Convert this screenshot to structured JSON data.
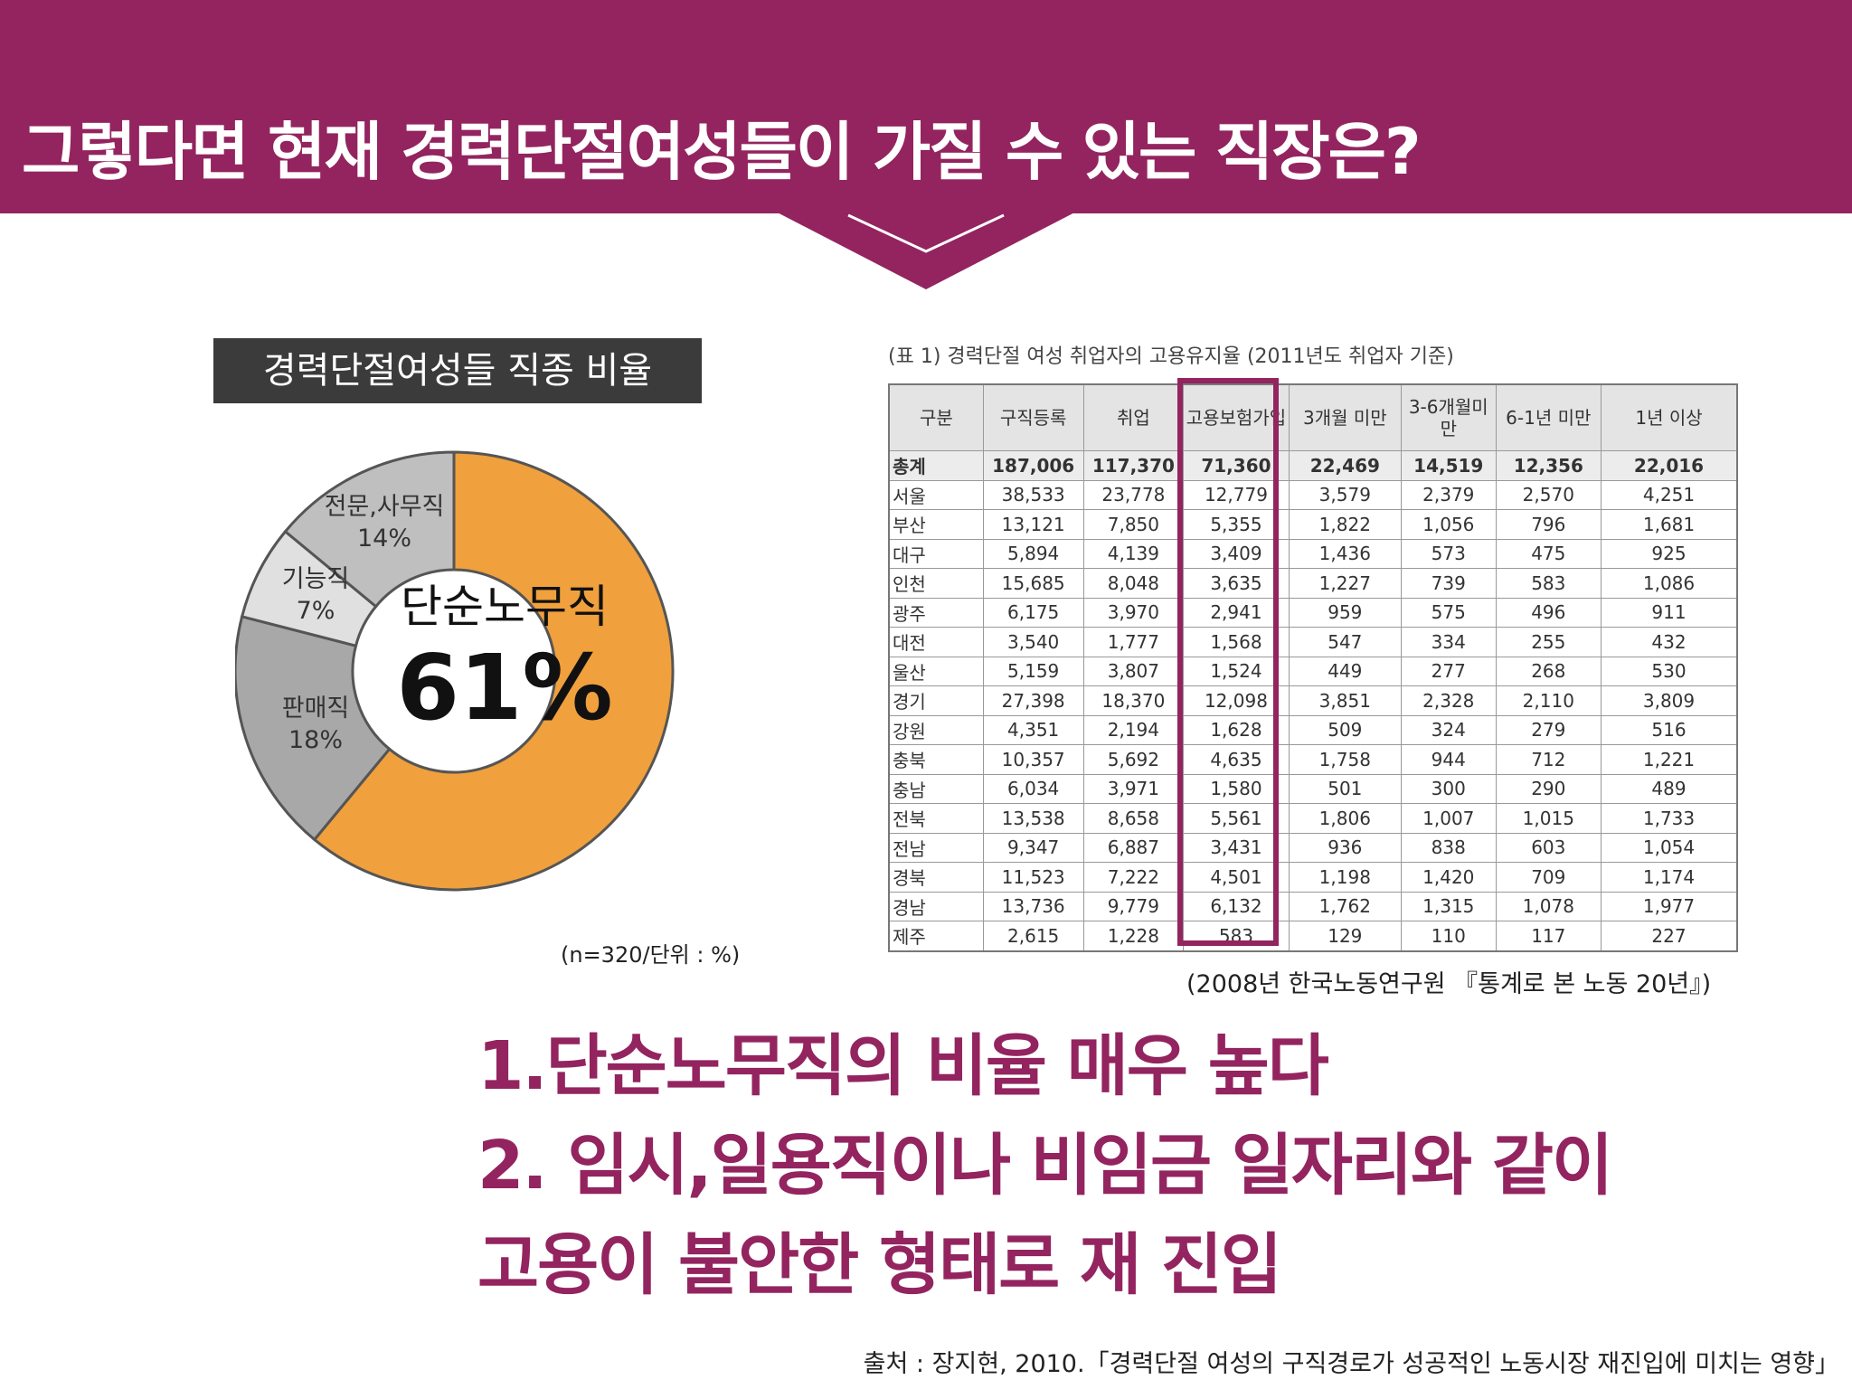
{
  "header": {
    "title": "그렇다면 현재 경력단절여성들이 가질 수 있는 직장은?"
  },
  "colors": {
    "brand": "#93245F",
    "orange": "#F0A03C",
    "gray_dark": "#A8A8A8",
    "gray_light": "#E0E0E0",
    "gray_mid": "#BFBFBF"
  },
  "pie": {
    "label": "경력단절여성들 직종 비율",
    "note": "(n=320/단위 : %)",
    "slices": [
      {
        "label": "단순노무직",
        "pct": "61%"
      },
      {
        "label": "판매직",
        "pct": "18%"
      },
      {
        "label": "기능직",
        "pct": "7%"
      },
      {
        "label": "전문,사무직",
        "pct": "14%"
      }
    ]
  },
  "chart_data": [
    {
      "type": "pie",
      "title": "경력단절여성들 직종 비율",
      "categories": [
        "단순노무직",
        "판매직",
        "기능직",
        "전문,사무직"
      ],
      "values": [
        61,
        18,
        7,
        14
      ],
      "note": "(n=320/단위 : %)"
    },
    {
      "type": "table",
      "title": "(표 1) 경력단절 여성 취업자의 고용유지율 (2011년도 취업자 기준)",
      "columns": [
        "구분",
        "구직등록",
        "취업",
        "고용보험가입",
        "3개월 미만",
        "3-6개월미만",
        "6-1년 미만",
        "1년 이상"
      ],
      "rows": [
        [
          "총계",
          "187,006",
          "117,370",
          "71,360",
          "22,469",
          "14,519",
          "12,356",
          "22,016"
        ],
        [
          "서울",
          "38,533",
          "23,778",
          "12,779",
          "3,579",
          "2,379",
          "2,570",
          "4,251"
        ],
        [
          "부산",
          "13,121",
          "7,850",
          "5,355",
          "1,822",
          "1,056",
          "796",
          "1,681"
        ],
        [
          "대구",
          "5,894",
          "4,139",
          "3,409",
          "1,436",
          "573",
          "475",
          "925"
        ],
        [
          "인천",
          "15,685",
          "8,048",
          "3,635",
          "1,227",
          "739",
          "583",
          "1,086"
        ],
        [
          "광주",
          "6,175",
          "3,970",
          "2,941",
          "959",
          "575",
          "496",
          "911"
        ],
        [
          "대전",
          "3,540",
          "1,777",
          "1,568",
          "547",
          "334",
          "255",
          "432"
        ],
        [
          "울산",
          "5,159",
          "3,807",
          "1,524",
          "449",
          "277",
          "268",
          "530"
        ],
        [
          "경기",
          "27,398",
          "18,370",
          "12,098",
          "3,851",
          "2,328",
          "2,110",
          "3,809"
        ],
        [
          "강원",
          "4,351",
          "2,194",
          "1,628",
          "509",
          "324",
          "279",
          "516"
        ],
        [
          "충북",
          "10,357",
          "5,692",
          "4,635",
          "1,758",
          "944",
          "712",
          "1,221"
        ],
        [
          "충남",
          "6,034",
          "3,971",
          "1,580",
          "501",
          "300",
          "290",
          "489"
        ],
        [
          "전북",
          "13,538",
          "8,658",
          "5,561",
          "1,806",
          "1,007",
          "1,015",
          "1,733"
        ],
        [
          "전남",
          "9,347",
          "6,887",
          "3,431",
          "936",
          "838",
          "603",
          "1,054"
        ],
        [
          "경북",
          "11,523",
          "7,222",
          "4,501",
          "1,198",
          "1,420",
          "709",
          "1,174"
        ],
        [
          "경남",
          "13,736",
          "9,779",
          "6,132",
          "1,762",
          "1,315",
          "1,078",
          "1,977"
        ],
        [
          "제주",
          "2,615",
          "1,228",
          "583",
          "129",
          "110",
          "117",
          "227"
        ]
      ]
    }
  ],
  "table": {
    "caption": "(표 1) 경력단절 여성 취업자의 고용유지율 (2011년도 취업자 기준)",
    "headers": [
      "구분",
      "구직등록",
      "취업",
      "고용보험가입",
      "3개월 미만",
      "3-6개월미만",
      "6-1년 미만",
      "1년 이상"
    ],
    "source": "(2008년 한국노동연구원 『통계로 본 노동 20년』)"
  },
  "points": {
    "line1": "1.단순노무직의 비율 매우 높다",
    "line2": "2. 임시,일용직이나 비임금 일자리와 같이",
    "line3": "고용이 불안한 형태로 재 진입"
  },
  "footer": {
    "source": "출처 : 장지현, 2010.「경력단절 여성의 구직경로가 성공적인 노동시장 재진입에 미치는 영향」"
  }
}
